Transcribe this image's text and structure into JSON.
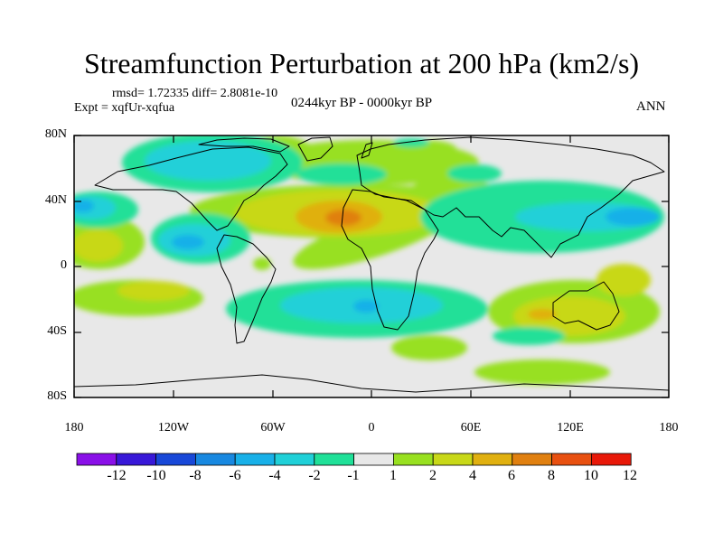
{
  "title": "Streamfunction Perturbation at 200 hPa (km2/s)",
  "stats_text": "rmsd= 1.72335 diff= 2.8081e-10",
  "experiment_text": "Expt = xqfUr-xqfua",
  "period_text": "0244kyr BP - 0000kyr BP",
  "season_text": "ANN",
  "lat_labels": [
    "80N",
    "40N",
    "0",
    "40S",
    "80S"
  ],
  "lon_labels": [
    "180",
    "120W",
    "60W",
    "0",
    "60E",
    "120E",
    "180"
  ],
  "colorbar": {
    "labels": [
      "-12",
      "-10",
      "-8",
      "-6",
      "-4",
      "-2",
      "-1",
      "1",
      "2",
      "4",
      "6",
      "8",
      "10",
      "12"
    ],
    "colors": [
      "#8a10e8",
      "#3818d8",
      "#1848d8",
      "#1888e0",
      "#18b0e8",
      "#20d0d8",
      "#20e098",
      "#e8e8e8",
      "#98e020",
      "#c8d818",
      "#e0b010",
      "#e08010",
      "#e85010",
      "#e81808"
    ]
  }
}
